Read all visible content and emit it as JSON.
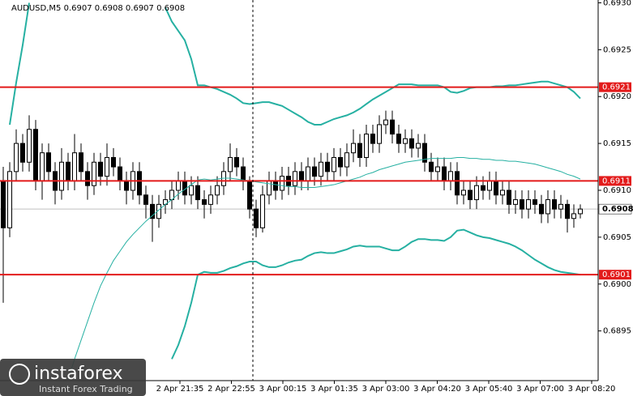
{
  "chart_data": {
    "type": "candlestick",
    "title": "AUDUSD,M5  0.6907 0.6908 0.6907 0.6908",
    "ylim": [
      0.68897,
      0.69303
    ],
    "yticks": [
      0.6895,
      {
        "value": 0.69,
        "label": "0.6900"
      },
      0.6905,
      {
        "value": 0.691,
        "label": "0.6910"
      },
      0.6915,
      {
        "value": 0.692,
        "label": "0.6920"
      },
      0.6925,
      {
        "value": 0.693,
        "label": "0.6930"
      }
    ],
    "xticks": [
      "2 Apr 21:35",
      "2 Apr 22:55",
      "3 Apr 00:15",
      "3 Apr 01:35",
      "3 Apr 03:00",
      "3 Apr 04:20",
      "3 Apr 05:40",
      "3 Apr 07:00",
      "3 Apr 08:20"
    ],
    "levels": [
      0.6921,
      0.6911,
      0.6901
    ],
    "level_color": "#e31b1b",
    "current_price": 0.6908,
    "open": [
      0.6911,
      0.6906,
      0.6912,
      0.6915,
      0.6913,
      0.69165,
      0.6911,
      0.6914,
      0.6912,
      0.691,
      0.6913,
      0.6911,
      0.6914,
      0.6912,
      0.69105,
      0.6913,
      0.69115,
      0.69135,
      0.69125,
      0.6911,
      0.691,
      0.6912,
      0.69095,
      0.69085,
      0.6907,
      0.69085,
      0.6909,
      0.691,
      0.6911,
      0.69095,
      0.69105,
      0.6909,
      0.69085,
      0.69095,
      0.69105,
      0.6912,
      0.69135,
      0.69125,
      0.6911,
      0.6908,
      0.6906,
      0.69095,
      0.6911,
      0.691,
      0.69115,
      0.69105,
      0.6912,
      0.6911,
      0.69125,
      0.69115,
      0.6913,
      0.6912,
      0.69135,
      0.69125,
      0.6914,
      0.6915,
      0.69135,
      0.6916,
      0.6915,
      0.6917,
      0.69175,
      0.6916,
      0.6915,
      0.69155,
      0.69145,
      0.6915,
      0.6913,
      0.6912,
      0.69125,
      0.6911,
      0.6912,
      0.69095,
      0.691,
      0.6909,
      0.69105,
      0.691,
      0.6911,
      0.69095,
      0.691,
      0.69085,
      0.6909,
      0.6908,
      0.6909,
      0.69085,
      0.69075,
      0.6909,
      0.6908,
      0.69085,
      0.6907,
      0.69075
    ],
    "high": [
      0.69125,
      0.6913,
      0.69165,
      0.6916,
      0.6918,
      0.69175,
      0.6915,
      0.6915,
      0.6913,
      0.69145,
      0.6914,
      0.6916,
      0.6915,
      0.6913,
      0.6914,
      0.6914,
      0.6915,
      0.69145,
      0.69135,
      0.6912,
      0.6913,
      0.6913,
      0.69105,
      0.69095,
      0.69095,
      0.691,
      0.6911,
      0.6912,
      0.6912,
      0.69115,
      0.69115,
      0.691,
      0.69105,
      0.69115,
      0.6913,
      0.6915,
      0.69145,
      0.69135,
      0.69115,
      0.6909,
      0.69105,
      0.6912,
      0.6912,
      0.69125,
      0.69125,
      0.6913,
      0.6913,
      0.69135,
      0.69135,
      0.6914,
      0.6914,
      0.69145,
      0.69145,
      0.6915,
      0.69165,
      0.6916,
      0.6917,
      0.6917,
      0.6918,
      0.69185,
      0.69185,
      0.6917,
      0.69165,
      0.69165,
      0.6916,
      0.6916,
      0.6914,
      0.69135,
      0.69135,
      0.6913,
      0.6913,
      0.6911,
      0.6911,
      0.69115,
      0.69115,
      0.6912,
      0.6912,
      0.6911,
      0.6911,
      0.691,
      0.691,
      0.691,
      0.691,
      0.69095,
      0.691,
      0.691,
      0.69095,
      0.6909,
      0.69085,
      0.69085
    ],
    "low": [
      0.6898,
      0.6905,
      0.6911,
      0.6912,
      0.6912,
      0.691,
      0.6909,
      0.6911,
      0.69085,
      0.6909,
      0.691,
      0.691,
      0.6911,
      0.6909,
      0.69095,
      0.69105,
      0.69105,
      0.69115,
      0.691,
      0.69085,
      0.6909,
      0.69085,
      0.6907,
      0.69045,
      0.6906,
      0.69075,
      0.6908,
      0.6909,
      0.69085,
      0.69085,
      0.6908,
      0.6907,
      0.69075,
      0.69085,
      0.69095,
      0.6911,
      0.69115,
      0.691,
      0.6907,
      0.6905,
      0.69055,
      0.69085,
      0.6909,
      0.6909,
      0.69095,
      0.69095,
      0.691,
      0.691,
      0.69105,
      0.69105,
      0.6911,
      0.6911,
      0.69115,
      0.69115,
      0.6913,
      0.69125,
      0.69125,
      0.6914,
      0.6914,
      0.6916,
      0.6915,
      0.6914,
      0.6914,
      0.69135,
      0.69135,
      0.6912,
      0.6911,
      0.6911,
      0.691,
      0.691,
      0.69085,
      0.69085,
      0.6908,
      0.6908,
      0.6909,
      0.6909,
      0.69085,
      0.69085,
      0.69075,
      0.69075,
      0.6907,
      0.6907,
      0.69075,
      0.69065,
      0.69065,
      0.6907,
      0.6907,
      0.69055,
      0.6906,
      0.6907
    ],
    "close": [
      0.6906,
      0.6912,
      0.6915,
      0.6913,
      0.69165,
      0.6911,
      0.6914,
      0.6912,
      0.691,
      0.6913,
      0.6911,
      0.6914,
      0.6912,
      0.69105,
      0.6913,
      0.69115,
      0.69135,
      0.69125,
      0.6911,
      0.691,
      0.6912,
      0.69095,
      0.69085,
      0.6907,
      0.69085,
      0.6909,
      0.691,
      0.6911,
      0.69095,
      0.69105,
      0.6909,
      0.69085,
      0.69095,
      0.69105,
      0.6912,
      0.69135,
      0.69125,
      0.6911,
      0.6908,
      0.6906,
      0.69095,
      0.6911,
      0.691,
      0.69115,
      0.69105,
      0.6912,
      0.6911,
      0.69125,
      0.69115,
      0.6913,
      0.6912,
      0.69135,
      0.69125,
      0.6914,
      0.6915,
      0.69135,
      0.6916,
      0.6915,
      0.6917,
      0.69175,
      0.6916,
      0.6915,
      0.69155,
      0.69145,
      0.6915,
      0.6913,
      0.6912,
      0.69125,
      0.6911,
      0.6912,
      0.69095,
      0.691,
      0.6909,
      0.69105,
      0.691,
      0.6911,
      0.69095,
      0.691,
      0.69085,
      0.6909,
      0.6908,
      0.6909,
      0.69085,
      0.69075,
      0.6909,
      0.6908,
      0.69085,
      0.6907,
      0.69075,
      0.6908
    ],
    "series": [
      {
        "color": "#26b0a2",
        "width": 2,
        "values": [
          null,
          0.6917,
          0.69215,
          0.69255,
          0.693,
          null,
          null,
          null,
          null,
          null,
          null,
          null,
          null,
          null,
          null,
          null,
          null,
          null,
          null,
          null,
          null,
          null,
          null,
          null,
          null,
          0.69295,
          0.6928,
          0.6927,
          0.6926,
          0.6924,
          0.69212,
          0.69212,
          0.6921,
          0.69208,
          0.69205,
          0.69202,
          0.69198,
          0.69193,
          0.69192,
          0.69193,
          0.69194,
          0.69194,
          0.69192,
          0.6919,
          0.69186,
          0.69182,
          0.69178,
          0.69173,
          0.6917,
          0.6917,
          0.69173,
          0.69176,
          0.69178,
          0.6918,
          0.69183,
          0.69187,
          0.69192,
          0.69197,
          0.69201,
          0.69205,
          0.69209,
          0.69213,
          0.69213,
          0.69213,
          0.69212,
          0.69212,
          0.69212,
          0.69212,
          0.6921,
          0.69205,
          0.69204,
          0.69206,
          0.69209,
          0.6921,
          0.6921,
          0.6921,
          0.69211,
          0.69211,
          0.69212,
          0.69212,
          0.69213,
          0.69214,
          0.69215,
          0.69216,
          0.69216,
          0.69214,
          0.69212,
          0.6921,
          0.69205,
          0.69198
        ]
      },
      {
        "color": "#26b0a2",
        "width": 1,
        "values": [
          null,
          null,
          null,
          null,
          null,
          null,
          null,
          null,
          null,
          null,
          0.68898,
          0.6892,
          0.6894,
          0.6896,
          0.6898,
          0.68998,
          0.69012,
          0.69025,
          0.69035,
          0.69045,
          0.69053,
          0.6906,
          0.69067,
          0.69073,
          0.69079,
          0.69085,
          0.6909,
          0.69096,
          0.69101,
          0.69106,
          0.69111,
          0.69112,
          0.69111,
          0.69112,
          0.69113,
          0.69113,
          0.69112,
          0.69111,
          0.6911,
          0.69109,
          0.69108,
          0.69107,
          0.69106,
          0.69105,
          0.69104,
          0.69104,
          0.69103,
          0.69103,
          0.69103,
          0.69104,
          0.69105,
          0.69106,
          0.69108,
          0.6911,
          0.69112,
          0.69114,
          0.69117,
          0.69119,
          0.69122,
          0.69124,
          0.69126,
          0.69128,
          0.6913,
          0.69131,
          0.69132,
          0.69133,
          0.69134,
          0.69134,
          0.69134,
          0.69134,
          0.69135,
          0.69135,
          0.69134,
          0.69134,
          0.69133,
          0.69133,
          0.69132,
          0.69132,
          0.69131,
          0.69131,
          0.6913,
          0.69129,
          0.69128,
          0.69126,
          0.69124,
          0.69122,
          0.6912,
          0.69117,
          0.69115,
          0.69112
        ]
      },
      {
        "color": "#26b0a2",
        "width": 2,
        "values": [
          null,
          null,
          null,
          null,
          null,
          null,
          null,
          null,
          null,
          null,
          null,
          null,
          null,
          null,
          null,
          null,
          null,
          null,
          null,
          null,
          null,
          null,
          null,
          null,
          null,
          null,
          0.6892,
          0.68935,
          0.68955,
          0.6898,
          0.6901,
          0.69013,
          0.69012,
          0.69012,
          0.69014,
          0.69017,
          0.69019,
          0.69022,
          0.69024,
          0.69024,
          0.6902,
          0.69018,
          0.69018,
          0.6902,
          0.69023,
          0.69025,
          0.69026,
          0.6903,
          0.69033,
          0.69034,
          0.69033,
          0.69033,
          0.69035,
          0.69037,
          0.6904,
          0.69041,
          0.6904,
          0.6904,
          0.6904,
          0.69038,
          0.69036,
          0.69036,
          0.6904,
          0.69045,
          0.69048,
          0.69048,
          0.69047,
          0.69047,
          0.69046,
          0.6905,
          0.69057,
          0.69058,
          0.69055,
          0.69052,
          0.6905,
          0.69049,
          0.69047,
          0.69045,
          0.69043,
          0.6904,
          0.69036,
          0.69031,
          0.69026,
          0.69022,
          0.69018,
          0.69015,
          0.69013,
          0.69012,
          0.69011,
          0.6901
        ]
      }
    ]
  },
  "logo": {
    "brand": "instaforex",
    "tagline": "Instant Forex Trading"
  }
}
